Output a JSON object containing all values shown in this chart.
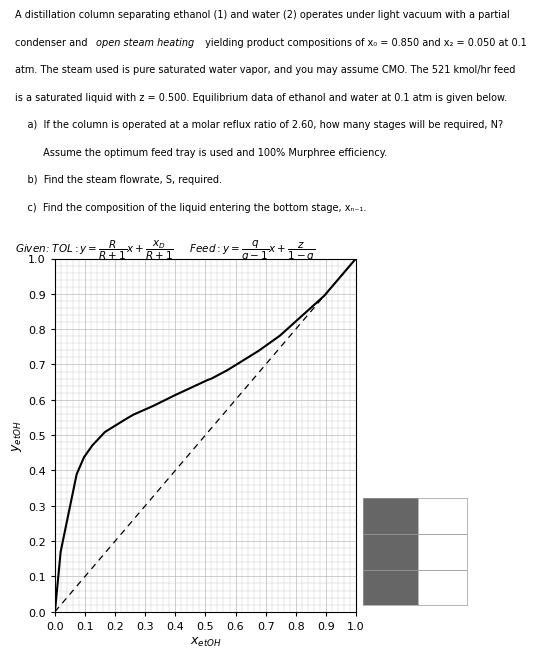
{
  "problem_lines": [
    "A distillation column separating ethanol (1) and water (2) operates under light vacuum with a partial",
    "condenser and *open steam heating* yielding product compositions of x₀ = 0.850 and x₂ = 0.050 at 0.1",
    "atm. The steam used is pure saturated water vapor, and you may assume CMO. The 521 kmol/hr feed",
    "is a saturated liquid with z = 0.500. Equilibrium data of ethanol and water at 0.1 atm is given below."
  ],
  "sub_lines": [
    "    a)  If the column is operated at a molar reflux ratio of 2.60, how many stages will be required, N?",
    "         Assume the optimum feed tray is used and 100% Murphree efficiency.",
    "    b)  Find the steam flowrate, S, required.",
    "    c)  Find the composition of the liquid entering the bottom stage, xₙ₋₁."
  ],
  "xlabel": "xₑₜₒₕ",
  "ylabel": "yₑₜₒₕ",
  "xlabel_plain": "x_etOH",
  "ylabel_plain": "y_etOH",
  "xlim": [
    0,
    1
  ],
  "ylim": [
    0,
    1
  ],
  "xticks": [
    0,
    0.1,
    0.2,
    0.3,
    0.4,
    0.5,
    0.6,
    0.7,
    0.8,
    0.9,
    1
  ],
  "yticks": [
    0,
    0.1,
    0.2,
    0.3,
    0.4,
    0.5,
    0.6,
    0.7,
    0.8,
    0.9,
    1
  ],
  "eq_x": [
    0.0,
    0.019,
    0.0721,
    0.0966,
    0.1238,
    0.1661,
    0.2337,
    0.2608,
    0.3273,
    0.3965,
    0.5079,
    0.5198,
    0.5732,
    0.6763,
    0.7472,
    0.8943,
    1.0
  ],
  "eq_y": [
    0.0,
    0.17,
    0.3891,
    0.4375,
    0.4704,
    0.5089,
    0.5445,
    0.558,
    0.583,
    0.6122,
    0.6564,
    0.6599,
    0.6841,
    0.7385,
    0.7815,
    0.8943,
    1.0
  ],
  "bg_color": "#ffffff",
  "grid_color": "#bbbbbb",
  "eq_color": "#000000",
  "diag_color": "#000000",
  "table_gray": "#666666",
  "text_fontsize": 7.0,
  "axis_label_fontsize": 9,
  "tick_fontsize": 8
}
